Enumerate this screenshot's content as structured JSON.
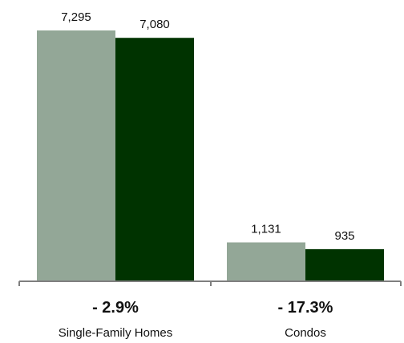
{
  "chart_data": {
    "type": "bar",
    "categories": [
      "Single-Family Homes",
      "Condos"
    ],
    "series": [
      {
        "values": [
          7295,
          1131
        ],
        "color": "#93a797"
      },
      {
        "values": [
          7080,
          935
        ],
        "color": "#003300"
      }
    ],
    "value_labels": [
      [
        "7,295",
        "1,131"
      ],
      [
        "7,080",
        "935"
      ]
    ],
    "change_labels": [
      "- 2.9%",
      "- 17.3%"
    ],
    "ylim": [
      0,
      7600
    ],
    "grid": false,
    "legend": "none",
    "axis_color": "#7f7f7f"
  }
}
